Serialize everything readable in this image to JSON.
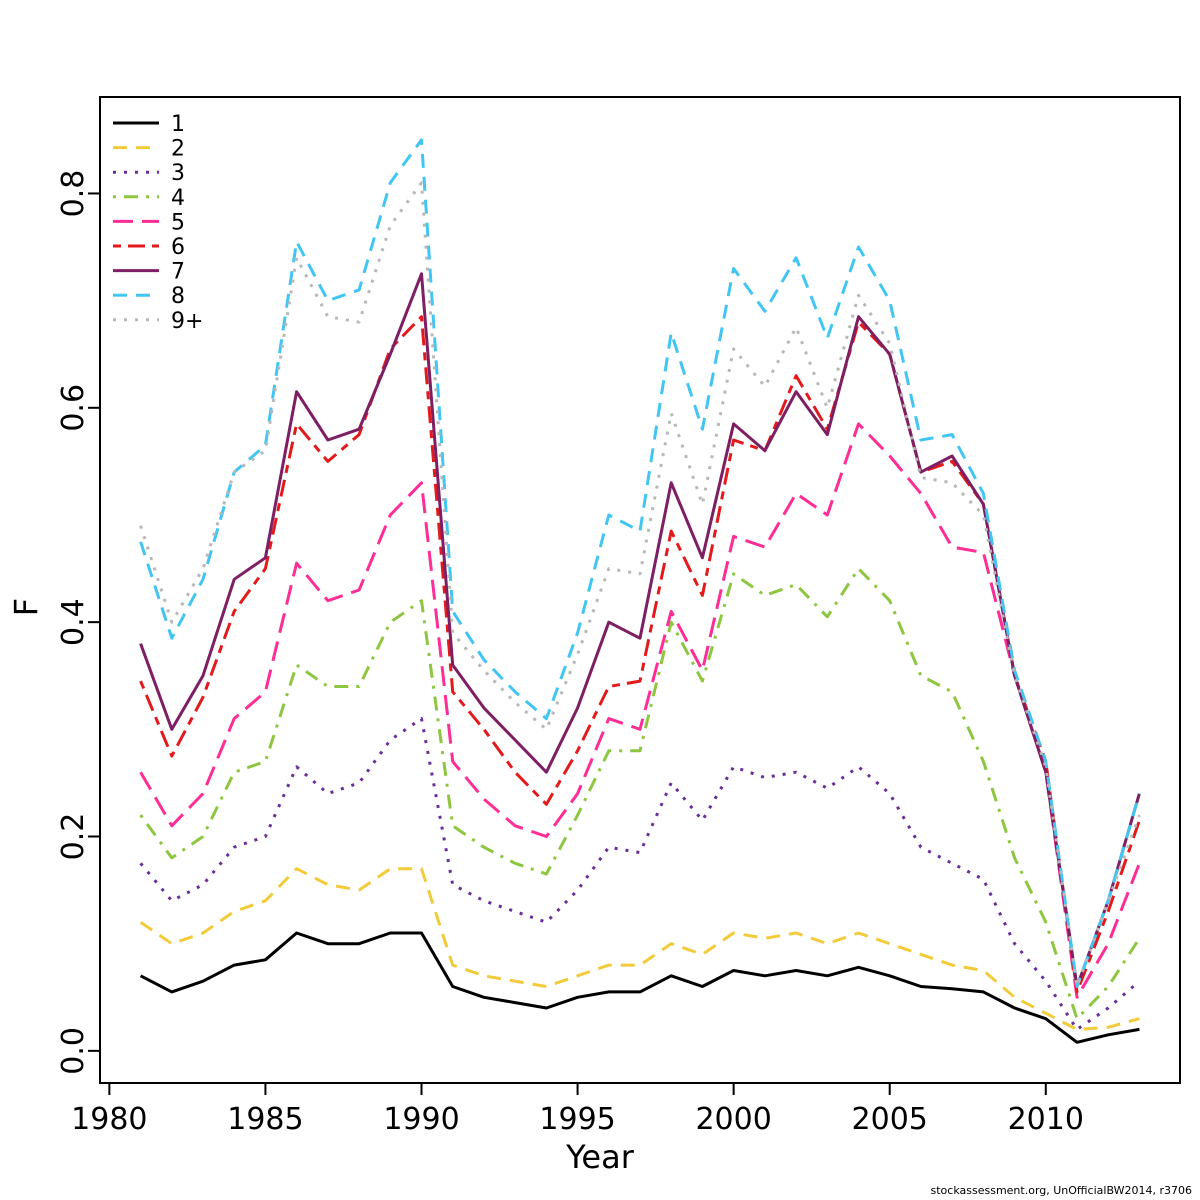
{
  "footer": "stockassessment.org, UnOfficialBW2014, r3706",
  "chart_data": {
    "type": "line",
    "title": "",
    "xlabel": "Year",
    "ylabel": "F",
    "grid": false,
    "legend_position": "top-left",
    "xlim": [
      1979.7,
      2014.3
    ],
    "ylim": [
      -0.03,
      0.89
    ],
    "x_ticks": [
      1980,
      1985,
      1990,
      1995,
      2000,
      2005,
      2010
    ],
    "y_ticks": [
      0.0,
      0.2,
      0.4,
      0.6,
      0.8
    ],
    "y_tick_labels": [
      "0.0",
      "0.2",
      "0.4",
      "0.6",
      "0.8"
    ],
    "x": [
      1981,
      1982,
      1983,
      1984,
      1985,
      1986,
      1987,
      1988,
      1989,
      1990,
      1991,
      1992,
      1993,
      1994,
      1995,
      1996,
      1997,
      1998,
      1999,
      2000,
      2001,
      2002,
      2003,
      2004,
      2005,
      2006,
      2007,
      2008,
      2009,
      2010,
      2011,
      2012,
      2013
    ],
    "series": [
      {
        "name": "1",
        "color": "#000000",
        "linetype": "solid",
        "values": [
          0.07,
          0.055,
          0.065,
          0.08,
          0.085,
          0.11,
          0.1,
          0.1,
          0.11,
          0.11,
          0.06,
          0.05,
          0.045,
          0.04,
          0.05,
          0.055,
          0.055,
          0.07,
          0.06,
          0.075,
          0.07,
          0.075,
          0.07,
          0.078,
          0.07,
          0.06,
          0.058,
          0.055,
          0.04,
          0.03,
          0.008,
          0.015,
          0.02
        ]
      },
      {
        "name": "2",
        "color": "#F2CB3A",
        "linetype": "dashed",
        "values": [
          0.12,
          0.1,
          0.11,
          0.13,
          0.14,
          0.17,
          0.155,
          0.15,
          0.17,
          0.17,
          0.08,
          0.07,
          0.065,
          0.06,
          0.07,
          0.08,
          0.08,
          0.1,
          0.09,
          0.11,
          0.105,
          0.11,
          0.1,
          0.11,
          0.1,
          0.09,
          0.08,
          0.075,
          0.05,
          0.035,
          0.02,
          0.022,
          0.03
        ]
      },
      {
        "name": "3",
        "color": "#6A2D9A",
        "linetype": "dotted",
        "values": [
          0.175,
          0.14,
          0.155,
          0.19,
          0.2,
          0.265,
          0.24,
          0.25,
          0.29,
          0.31,
          0.155,
          0.14,
          0.13,
          0.12,
          0.15,
          0.19,
          0.185,
          0.25,
          0.215,
          0.265,
          0.255,
          0.26,
          0.245,
          0.265,
          0.24,
          0.19,
          0.175,
          0.16,
          0.1,
          0.065,
          0.02,
          0.04,
          0.065
        ]
      },
      {
        "name": "4",
        "color": "#8DC63F",
        "linetype": "dotdash",
        "values": [
          0.22,
          0.18,
          0.2,
          0.26,
          0.27,
          0.36,
          0.34,
          0.34,
          0.4,
          0.42,
          0.21,
          0.19,
          0.175,
          0.165,
          0.22,
          0.28,
          0.28,
          0.4,
          0.345,
          0.445,
          0.425,
          0.435,
          0.405,
          0.45,
          0.42,
          0.35,
          0.335,
          0.27,
          0.18,
          0.12,
          0.03,
          0.06,
          0.105
        ]
      },
      {
        "name": "5",
        "color": "#FF2D96",
        "linetype": "longdash",
        "values": [
          0.26,
          0.21,
          0.24,
          0.31,
          0.335,
          0.455,
          0.42,
          0.43,
          0.5,
          0.53,
          0.27,
          0.235,
          0.21,
          0.2,
          0.24,
          0.31,
          0.3,
          0.41,
          0.355,
          0.48,
          0.47,
          0.52,
          0.5,
          0.585,
          0.555,
          0.52,
          0.47,
          0.465,
          0.35,
          0.26,
          0.05,
          0.1,
          0.175
        ]
      },
      {
        "name": "6",
        "color": "#E31A1C",
        "linetype": "twodash",
        "values": [
          0.345,
          0.275,
          0.33,
          0.41,
          0.45,
          0.585,
          0.55,
          0.575,
          0.655,
          0.685,
          0.335,
          0.3,
          0.26,
          0.23,
          0.28,
          0.34,
          0.345,
          0.485,
          0.425,
          0.57,
          0.56,
          0.63,
          0.58,
          0.68,
          0.65,
          0.54,
          0.55,
          0.51,
          0.35,
          0.27,
          0.055,
          0.13,
          0.215
        ]
      },
      {
        "name": "7",
        "color": "#7E1E63",
        "linetype": "solid",
        "values": [
          0.38,
          0.3,
          0.35,
          0.44,
          0.46,
          0.615,
          0.57,
          0.58,
          0.65,
          0.725,
          0.36,
          0.32,
          0.29,
          0.26,
          0.32,
          0.4,
          0.385,
          0.53,
          0.46,
          0.585,
          0.56,
          0.615,
          0.575,
          0.685,
          0.65,
          0.54,
          0.555,
          0.51,
          0.35,
          0.26,
          0.06,
          0.14,
          0.24
        ]
      },
      {
        "name": "8",
        "color": "#41C6F3",
        "linetype": "dashed",
        "values": [
          0.475,
          0.385,
          0.44,
          0.54,
          0.565,
          0.755,
          0.7,
          0.71,
          0.81,
          0.85,
          0.41,
          0.365,
          0.335,
          0.31,
          0.39,
          0.5,
          0.485,
          0.67,
          0.58,
          0.73,
          0.69,
          0.74,
          0.665,
          0.75,
          0.7,
          0.57,
          0.575,
          0.52,
          0.355,
          0.27,
          0.06,
          0.14,
          0.24
        ]
      },
      {
        "name": "9+",
        "color": "#B8B8B8",
        "linetype": "dotted",
        "values": [
          0.49,
          0.4,
          0.45,
          0.54,
          0.56,
          0.74,
          0.685,
          0.68,
          0.77,
          0.81,
          0.39,
          0.355,
          0.325,
          0.3,
          0.37,
          0.45,
          0.445,
          0.595,
          0.51,
          0.655,
          0.62,
          0.675,
          0.6,
          0.705,
          0.66,
          0.535,
          0.53,
          0.5,
          0.35,
          0.265,
          0.06,
          0.14,
          0.22
        ]
      }
    ]
  }
}
